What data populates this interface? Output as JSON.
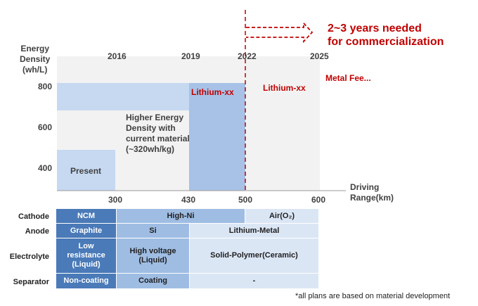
{
  "chart": {
    "y_axis_title": [
      "Energy",
      "Density",
      "(wh/L)"
    ],
    "x_axis_title": [
      "Driving",
      "Range(km)"
    ],
    "y_ticks": [
      "800",
      "600",
      "400"
    ],
    "x_ticks": [
      "300",
      "430",
      "500",
      "600"
    ],
    "year_labels": [
      "2016",
      "2019",
      "2022",
      "2025"
    ],
    "regions": {
      "present": "Present",
      "higher_energy": [
        "Higher Energy",
        "Density with",
        "current material",
        "(~320wh/kg)"
      ],
      "lithium_1": "Lithium-xx",
      "lithium_2": "Lithium-xx",
      "metal": "Metal Fee..."
    },
    "commercialization_note": [
      "2~3 years needed",
      "for commercialization"
    ]
  },
  "chart_data": {
    "type": "area",
    "x_ticks": [
      300,
      430,
      500,
      600
    ],
    "y_ticks": [
      400,
      600,
      800
    ],
    "years": [
      "2016",
      "2019",
      "2022",
      "2025"
    ],
    "steps": [
      {
        "label": "Present",
        "x_end": 300,
        "y": 480
      },
      {
        "label": "Higher Energy Density with current material (~320wh/kg)",
        "x_end": 430,
        "y": 680
      },
      {
        "label": "Lithium-xx",
        "x_end": 500,
        "y": 800
      },
      {
        "label": "Lithium-xx",
        "x_end": 600,
        "y": 800
      }
    ],
    "colors": {
      "present": "#c6d9f1",
      "higher": "#f2f2f2",
      "lithium": "#a7c2e6",
      "metal": "#ededed",
      "red": "#c00000"
    }
  },
  "table": {
    "rows": [
      {
        "label": "Cathode",
        "cells": [
          "NCM",
          "High-Ni",
          "Air(O₂)"
        ]
      },
      {
        "label": "Anode",
        "cells": [
          "Graphite",
          "Si",
          "Lithium-Metal"
        ]
      },
      {
        "label": "Electrolyte",
        "cells": [
          "Low resistance (Liquid)",
          "High voltage (Liquid)",
          "Solid-Polymer(Ceramic)"
        ]
      },
      {
        "label": "Separator",
        "cells": [
          "Non-coating",
          "Coating",
          "-"
        ]
      }
    ]
  },
  "footnote": "*all plans are based on material development"
}
